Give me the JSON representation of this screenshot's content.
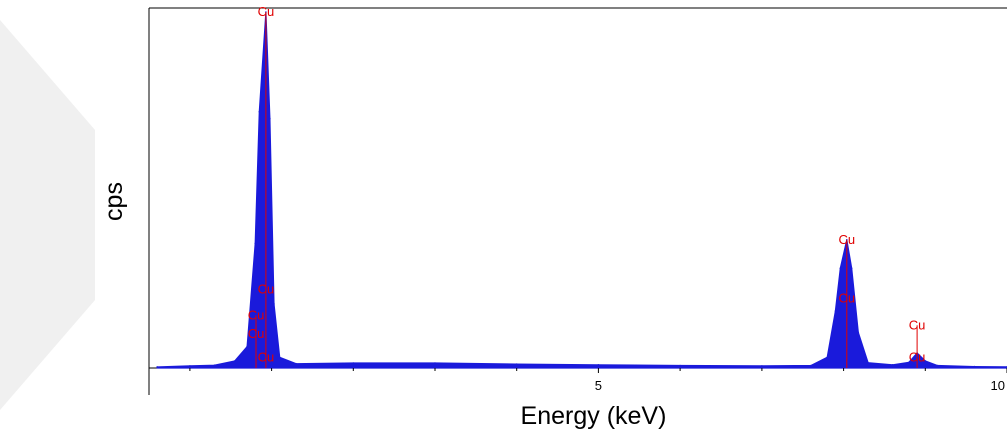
{
  "chart_data": {
    "type": "area",
    "title": "",
    "xlabel": "Energy (keV)",
    "ylabel": "cps",
    "xlim": [
      -0.5,
      10
    ],
    "ylim": [
      0,
      100
    ],
    "x_ticks": [
      5,
      10
    ],
    "x_tick_labels": [
      "5",
      "10"
    ],
    "grid": false,
    "colors": {
      "spectrum": "#1a1adb",
      "peak_label": "#e00000",
      "axis": "#000000",
      "watermark": "#eeeeee"
    },
    "series": [
      {
        "values": [
          {
            "x": -0.4,
            "y": 0.3
          },
          {
            "x": 0.0,
            "y": 0.6
          },
          {
            "x": 0.3,
            "y": 0.8
          },
          {
            "x": 0.55,
            "y": 2.0
          },
          {
            "x": 0.7,
            "y": 6.0
          },
          {
            "x": 0.8,
            "y": 35.0
          },
          {
            "x": 0.85,
            "y": 72.0
          },
          {
            "x": 0.93,
            "y": 100.0
          },
          {
            "x": 0.98,
            "y": 70.0
          },
          {
            "x": 1.03,
            "y": 18.0
          },
          {
            "x": 1.1,
            "y": 3.0
          },
          {
            "x": 1.3,
            "y": 1.2
          },
          {
            "x": 2.0,
            "y": 1.4
          },
          {
            "x": 3.0,
            "y": 1.4
          },
          {
            "x": 4.0,
            "y": 1.1
          },
          {
            "x": 5.0,
            "y": 0.9
          },
          {
            "x": 6.0,
            "y": 0.7
          },
          {
            "x": 7.0,
            "y": 0.6
          },
          {
            "x": 7.6,
            "y": 0.7
          },
          {
            "x": 7.8,
            "y": 3.0
          },
          {
            "x": 7.9,
            "y": 16.0
          },
          {
            "x": 7.96,
            "y": 28.0
          },
          {
            "x": 8.04,
            "y": 36.0
          },
          {
            "x": 8.1,
            "y": 28.0
          },
          {
            "x": 8.18,
            "y": 10.0
          },
          {
            "x": 8.3,
            "y": 1.5
          },
          {
            "x": 8.6,
            "y": 0.9
          },
          {
            "x": 8.8,
            "y": 1.6
          },
          {
            "x": 8.9,
            "y": 4.2
          },
          {
            "x": 9.0,
            "y": 2.0
          },
          {
            "x": 9.15,
            "y": 0.7
          },
          {
            "x": 9.6,
            "y": 0.4
          },
          {
            "x": 10.0,
            "y": 0.3
          }
        ]
      }
    ],
    "peak_markers": [
      {
        "label": "Cu",
        "x": 0.93,
        "y": 100.0
      },
      {
        "label": "Cu",
        "x": 0.93,
        "y": 22.0
      },
      {
        "label": "Cu",
        "x": 0.81,
        "y": 14.8
      },
      {
        "label": "Cu",
        "x": 0.81,
        "y": 9.5
      },
      {
        "label": "Cu",
        "x": 0.93,
        "y": 3.0
      },
      {
        "label": "Cu",
        "x": 8.04,
        "y": 36.0
      },
      {
        "label": "Cu",
        "x": 8.04,
        "y": 19.5
      },
      {
        "label": "Cu",
        "x": 8.9,
        "y": 12.0
      },
      {
        "label": "Cu",
        "x": 8.9,
        "y": 3.0
      }
    ]
  }
}
